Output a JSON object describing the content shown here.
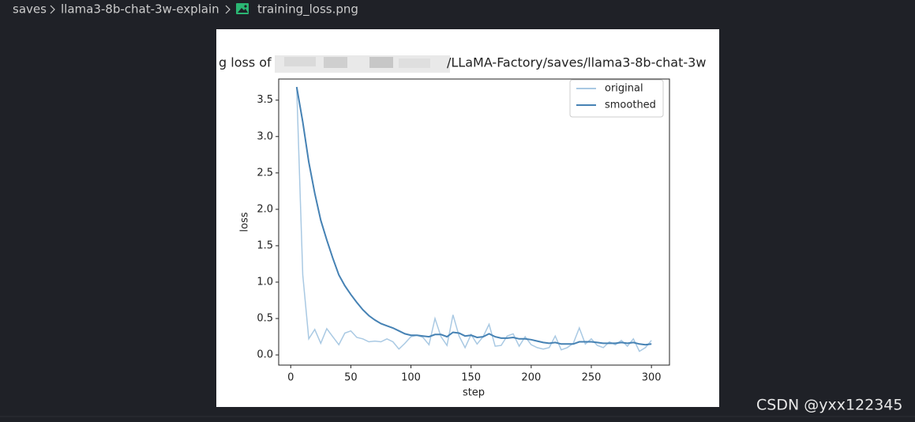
{
  "breadcrumb": [
    "saves",
    "llama3-8b-chat-3w-explain",
    "training_loss.png"
  ],
  "watermark": "CSDN @yxx122345",
  "chart_data": {
    "type": "line",
    "title_start": "g loss of",
    "title_end": "/LLaMA-Factory/saves/llama3-8b-chat-3w",
    "x_label": "step",
    "y_label": "loss",
    "x": [
      5,
      10,
      15,
      20,
      25,
      30,
      35,
      40,
      45,
      50,
      55,
      60,
      65,
      70,
      75,
      80,
      85,
      90,
      95,
      100,
      105,
      110,
      115,
      120,
      125,
      130,
      135,
      140,
      145,
      150,
      155,
      160,
      165,
      170,
      175,
      180,
      185,
      190,
      195,
      200,
      205,
      210,
      215,
      220,
      225,
      230,
      235,
      240,
      245,
      250,
      255,
      260,
      265,
      270,
      275,
      280,
      285,
      290,
      295,
      300
    ],
    "series": [
      {
        "name": "original",
        "color": "#a9c9e3",
        "values": [
          3.68,
          1.1,
          0.22,
          0.35,
          0.16,
          0.36,
          0.25,
          0.14,
          0.3,
          0.33,
          0.24,
          0.22,
          0.18,
          0.19,
          0.18,
          0.22,
          0.18,
          0.08,
          0.16,
          0.25,
          0.27,
          0.24,
          0.14,
          0.5,
          0.25,
          0.13,
          0.55,
          0.26,
          0.1,
          0.28,
          0.15,
          0.25,
          0.42,
          0.12,
          0.13,
          0.26,
          0.29,
          0.12,
          0.25,
          0.14,
          0.1,
          0.08,
          0.1,
          0.26,
          0.07,
          0.1,
          0.16,
          0.37,
          0.15,
          0.22,
          0.13,
          0.1,
          0.18,
          0.14,
          0.2,
          0.12,
          0.22,
          0.05,
          0.1,
          0.2
        ]
      },
      {
        "name": "smoothed",
        "color": "#4682b4",
        "values": [
          3.68,
          3.2,
          2.65,
          2.22,
          1.85,
          1.58,
          1.33,
          1.1,
          0.95,
          0.83,
          0.72,
          0.62,
          0.54,
          0.48,
          0.43,
          0.4,
          0.37,
          0.33,
          0.29,
          0.27,
          0.27,
          0.26,
          0.25,
          0.28,
          0.28,
          0.25,
          0.31,
          0.3,
          0.26,
          0.27,
          0.24,
          0.25,
          0.29,
          0.25,
          0.23,
          0.23,
          0.24,
          0.22,
          0.22,
          0.21,
          0.19,
          0.17,
          0.16,
          0.17,
          0.15,
          0.15,
          0.15,
          0.18,
          0.18,
          0.18,
          0.17,
          0.16,
          0.16,
          0.16,
          0.17,
          0.16,
          0.17,
          0.15,
          0.14,
          0.15
        ]
      }
    ],
    "xlim": [
      -10,
      315
    ],
    "ylim": [
      -0.14,
      3.79
    ],
    "xticks": [
      0,
      50,
      100,
      150,
      200,
      250,
      300
    ],
    "yticks": [
      {
        "value": 0,
        "label": "0.0"
      },
      0.5,
      {
        "value": 1,
        "label": "1.0"
      },
      1.5,
      {
        "value": 2,
        "label": "2.0"
      },
      2.5,
      {
        "value": 3,
        "label": "3.0"
      },
      3.5
    ],
    "legend": "upper right"
  }
}
